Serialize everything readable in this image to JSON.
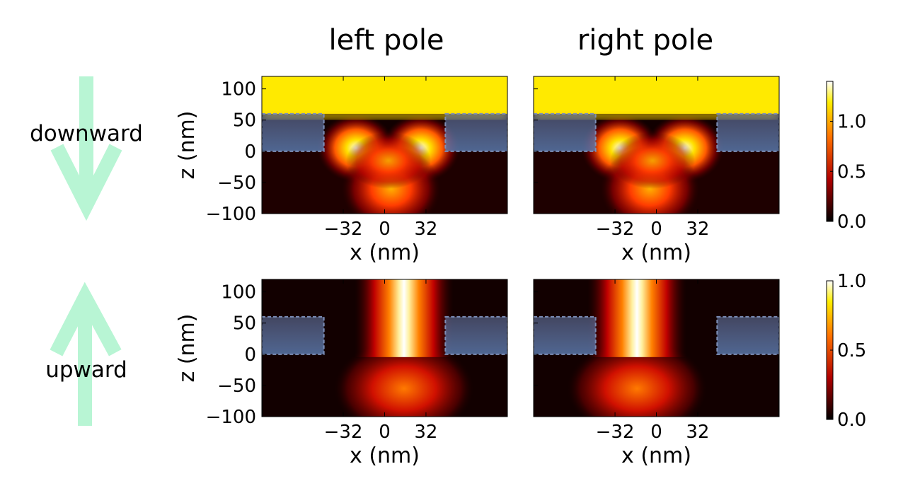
{
  "columns": [
    "left pole",
    "right pole"
  ],
  "rows": [
    {
      "label": "downward",
      "arrow": "down-arrow"
    },
    {
      "label": "upward",
      "arrow": "up-arrow"
    }
  ],
  "arrow_color": "#b8f5d4",
  "electrode_color": "#5a78ab",
  "chart_data": [
    {
      "type": "heatmap",
      "row": "downward",
      "column": "left pole",
      "xlabel": "x (nm)",
      "ylabel": "z (nm)",
      "xticks": [
        -32,
        0,
        32
      ],
      "xtick_labels": [
        "−32",
        "0",
        "32"
      ],
      "yticks": [
        100,
        50,
        0,
        -50,
        -100
      ],
      "ytick_labels": [
        "100",
        "50",
        "0",
        "−50",
        "−100"
      ],
      "xlim": [
        -95,
        95
      ],
      "ylim": [
        -100,
        120
      ],
      "colorbar": {
        "ticks": [
          0.0,
          0.5,
          1.0
        ],
        "tick_labels": [
          "0.0",
          "0.5",
          "1.0"
        ],
        "range": [
          0,
          1.4
        ]
      },
      "electrodes": [
        {
          "x": [
            -95,
            -47
          ],
          "z": [
            0,
            60
          ]
        },
        {
          "x": [
            47,
            95
          ],
          "z": [
            0,
            60
          ]
        }
      ],
      "field": {
        "top_region": {
          "z_min": 60,
          "value": 1.2
        },
        "hotspots": [
          {
            "x": -22,
            "z": 5,
            "value": 1.4
          },
          {
            "x": 28,
            "z": 5,
            "value": 1.4
          },
          {
            "x": 5,
            "z": -60,
            "value": 1.0
          }
        ]
      }
    },
    {
      "type": "heatmap",
      "row": "downward",
      "column": "right pole",
      "xlabel": "x (nm)",
      "ylabel": "",
      "xticks": [
        -32,
        0,
        32
      ],
      "xtick_labels": [
        "−32",
        "0",
        "32"
      ],
      "xlim": [
        -95,
        95
      ],
      "ylim": [
        -100,
        120
      ],
      "colorbar": {
        "ticks": [
          0.0,
          0.5,
          1.0
        ],
        "tick_labels": [
          "0.0",
          "0.5",
          "1.0"
        ],
        "range": [
          0,
          1.4
        ]
      },
      "electrodes": [
        {
          "x": [
            -95,
            -47
          ],
          "z": [
            0,
            60
          ]
        },
        {
          "x": [
            47,
            95
          ],
          "z": [
            0,
            60
          ]
        }
      ],
      "field": {
        "top_region": {
          "z_min": 60,
          "value": 1.2
        },
        "hotspots": [
          {
            "x": -28,
            "z": 5,
            "value": 1.4
          },
          {
            "x": 22,
            "z": 5,
            "value": 1.4
          },
          {
            "x": -5,
            "z": -60,
            "value": 1.0
          }
        ]
      }
    },
    {
      "type": "heatmap",
      "row": "upward",
      "column": "left pole",
      "xlabel": "x (nm)",
      "ylabel": "z (nm)",
      "xticks": [
        -32,
        0,
        32
      ],
      "xtick_labels": [
        "−32",
        "0",
        "32"
      ],
      "yticks": [
        100,
        50,
        0,
        -50,
        -100
      ],
      "ytick_labels": [
        "100",
        "50",
        "0",
        "−50",
        "−100"
      ],
      "xlim": [
        -95,
        95
      ],
      "ylim": [
        -100,
        120
      ],
      "colorbar": {
        "ticks": [
          0.0,
          0.5,
          1.0
        ],
        "tick_labels": [
          "0.0",
          "0.5",
          "1.0"
        ],
        "range": [
          0,
          1.0
        ]
      },
      "electrodes": [
        {
          "x": [
            -95,
            -47
          ],
          "z": [
            0,
            60
          ]
        },
        {
          "x": [
            47,
            95
          ],
          "z": [
            0,
            60
          ]
        }
      ],
      "field": {
        "beam": {
          "x": 15,
          "value": 1.0
        }
      }
    },
    {
      "type": "heatmap",
      "row": "upward",
      "column": "right pole",
      "xlabel": "x (nm)",
      "ylabel": "",
      "xticks": [
        -32,
        0,
        32
      ],
      "xtick_labels": [
        "−32",
        "0",
        "32"
      ],
      "xlim": [
        -95,
        95
      ],
      "ylim": [
        -100,
        120
      ],
      "colorbar": {
        "ticks": [
          0.0,
          0.5,
          1.0
        ],
        "tick_labels": [
          "0.0",
          "0.5",
          "1.0"
        ],
        "range": [
          0,
          1.0
        ]
      },
      "electrodes": [
        {
          "x": [
            -95,
            -47
          ],
          "z": [
            0,
            60
          ]
        },
        {
          "x": [
            47,
            95
          ],
          "z": [
            0,
            60
          ]
        }
      ],
      "field": {
        "beam": {
          "x": -15,
          "value": 1.0
        }
      }
    }
  ]
}
